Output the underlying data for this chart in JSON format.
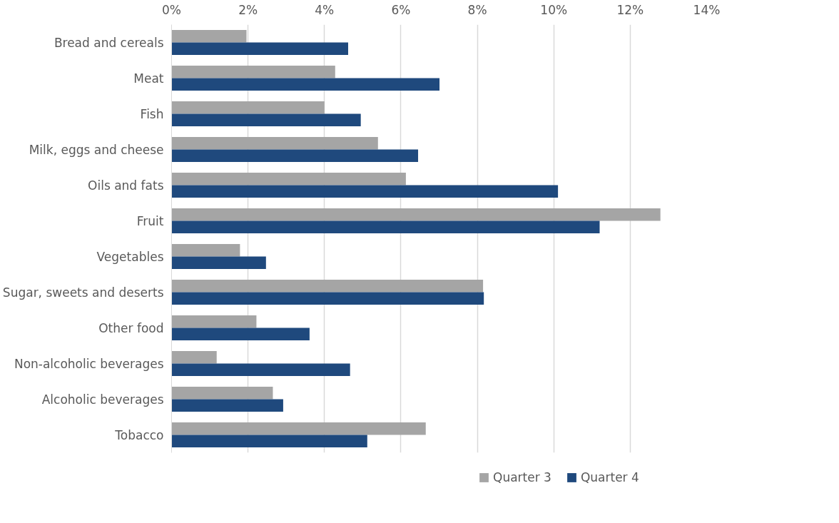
{
  "chart_data": {
    "type": "bar",
    "orientation": "horizontal",
    "categories": [
      "Bread and cereals",
      "Meat",
      "Fish",
      "Milk, eggs and cheese",
      "Oils and fats",
      "Fruit",
      "Vegetables",
      "Sugar, sweets and deserts",
      "Other food",
      "Non-alcoholic beverages",
      "Alcoholic beverages",
      "Tobacco"
    ],
    "series": [
      {
        "name": "Quarter 3",
        "color": "#a5a5a5",
        "values": [
          1.96,
          4.28,
          4.0,
          5.4,
          6.13,
          12.79,
          1.79,
          8.15,
          2.22,
          1.18,
          2.65,
          6.65
        ]
      },
      {
        "name": "Quarter 4",
        "color": "#1f497d",
        "values": [
          4.62,
          7.01,
          4.95,
          6.45,
          10.11,
          11.2,
          2.47,
          8.17,
          3.61,
          4.67,
          2.92,
          5.12
        ]
      }
    ],
    "xlim": [
      0,
      14
    ],
    "xticks": [
      {
        "value": 0,
        "label": "0%"
      },
      {
        "value": 2,
        "label": "2%"
      },
      {
        "value": 4,
        "label": "4%"
      },
      {
        "value": 6,
        "label": "6%"
      },
      {
        "value": 8,
        "label": "8%"
      },
      {
        "value": 10,
        "label": "10%"
      },
      {
        "value": 12,
        "label": "12%"
      },
      {
        "value": 14,
        "label": "14%"
      }
    ],
    "grid": "x",
    "legend": "bottom"
  }
}
